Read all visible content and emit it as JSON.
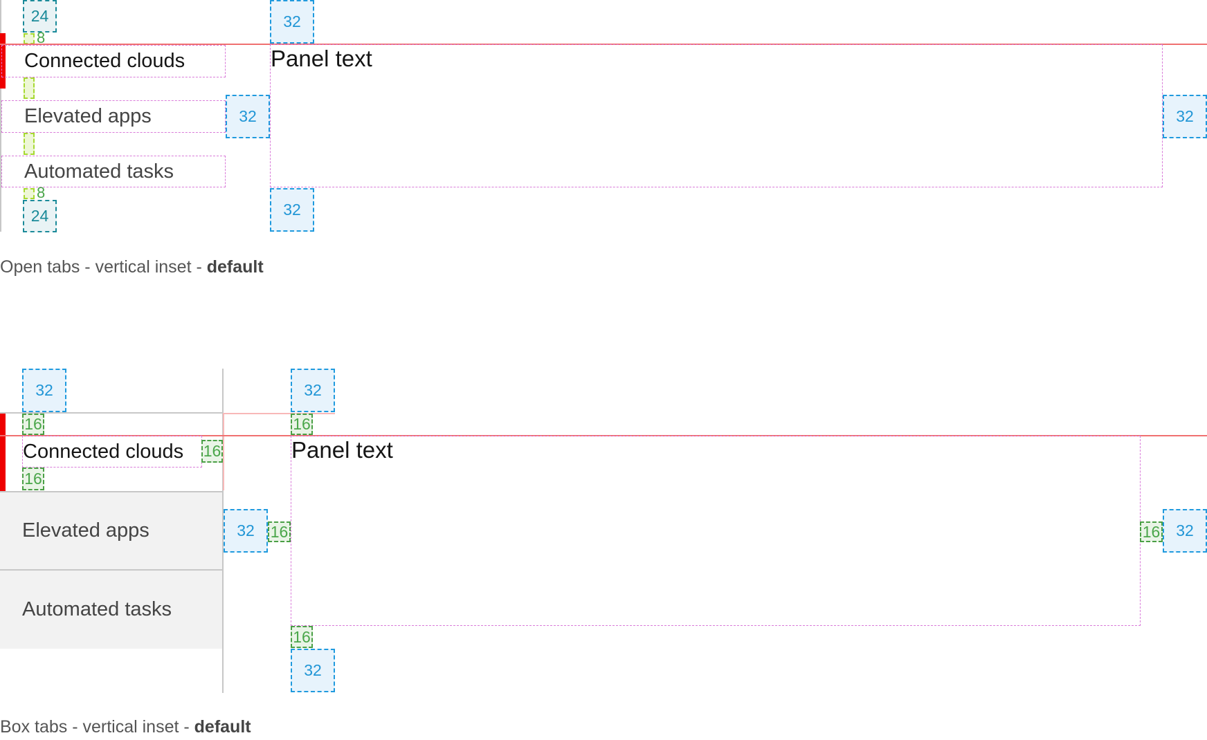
{
  "open_tabs": {
    "tabs": [
      {
        "label": "Connected clouds",
        "selected": true
      },
      {
        "label": "Elevated apps",
        "selected": false
      },
      {
        "label": "Automated tasks",
        "selected": false
      }
    ],
    "panel_text": "Panel text",
    "spacing": {
      "list_outer": "24",
      "tab_gap": "8",
      "panel": "32"
    },
    "caption_prefix": "Open tabs - vertical inset - ",
    "caption_bold": "default"
  },
  "box_tabs": {
    "tabs": [
      {
        "label": "Connected clouds",
        "selected": true
      },
      {
        "label": "Elevated apps",
        "selected": false
      },
      {
        "label": "Automated tasks",
        "selected": false
      }
    ],
    "panel_text": "Panel text",
    "spacing": {
      "outer": "32",
      "inner": "16"
    },
    "caption_prefix": "Box tabs - vertical inset - ",
    "caption_bold": "default"
  },
  "colors": {
    "accent": "#ee0000",
    "padding_32": "#1f9ade",
    "padding_16": "#4a9f45",
    "padding_24": "#1a8a99",
    "gap_8": "#a6d930",
    "bounds": "#d97ad9",
    "tab_bg": "#f2f2f2",
    "border": "#c7c7c7"
  }
}
